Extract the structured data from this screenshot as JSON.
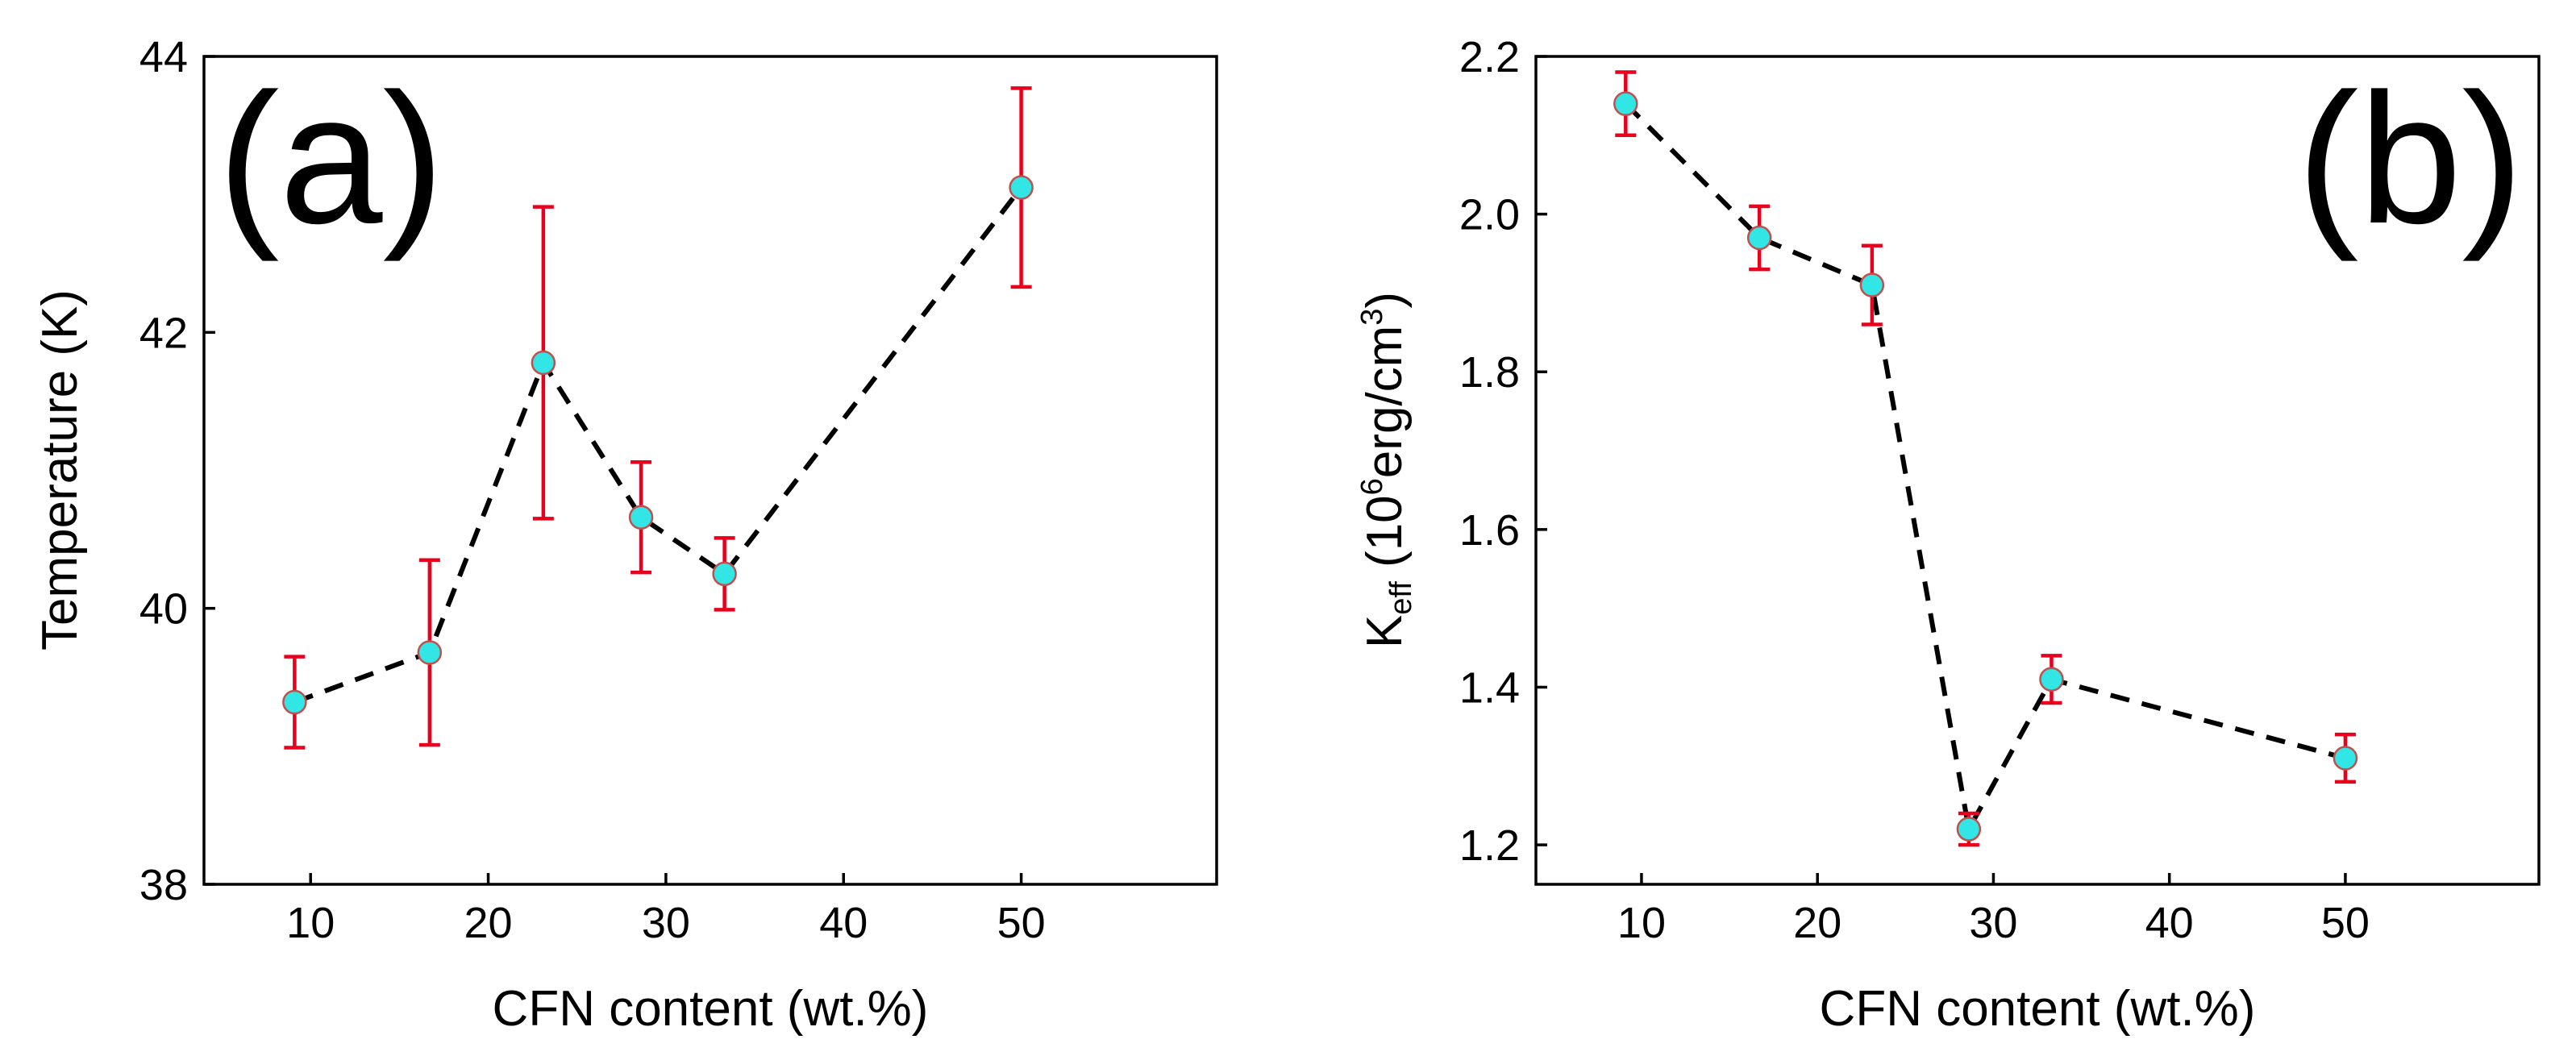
{
  "chart_data": [
    {
      "panel": "a",
      "type": "scatter",
      "style": "markers with error bars connected by dashed line",
      "xlabel": "CFN content (wt.%)",
      "ylabel": "Temperature (K)",
      "xlim": [
        4,
        61
      ],
      "ylim": [
        38,
        44
      ],
      "xticks": [
        10,
        20,
        30,
        40,
        50
      ],
      "yticks": [
        38,
        40,
        42,
        44
      ],
      "x": [
        9.1,
        16.7,
        23.1,
        28.6,
        33.3,
        50.0
      ],
      "y": [
        39.32,
        39.68,
        41.78,
        40.66,
        40.25,
        43.05
      ],
      "yerr": [
        0.33,
        0.67,
        1.13,
        0.4,
        0.26,
        0.72
      ],
      "grid": false,
      "legend": "none"
    },
    {
      "panel": "b",
      "type": "scatter",
      "style": "markers with error bars connected by dashed line",
      "xlabel": "CFN content (wt.%)",
      "ylabel_main": "K",
      "ylabel_sub": "eff",
      "ylabel_open": " (10",
      "ylabel_exp": "6",
      "ylabel_mid": "erg/cm",
      "ylabel_exp2": "3",
      "ylabel_close": ")",
      "xlim": [
        4,
        61
      ],
      "ylim": [
        1.15,
        2.2
      ],
      "xticks": [
        10,
        20,
        30,
        40,
        50
      ],
      "yticks": [
        1.2,
        1.4,
        1.6,
        1.8,
        2.0,
        2.2
      ],
      "ytick_labels": [
        "1.2",
        "1.4",
        "1.6",
        "1.8",
        "2.0",
        "2.2"
      ],
      "x": [
        9.1,
        16.7,
        23.1,
        28.6,
        33.3,
        50.0
      ],
      "y": [
        2.14,
        1.97,
        1.91,
        1.22,
        1.41,
        1.31
      ],
      "yerr": [
        0.04,
        0.04,
        0.05,
        0.02,
        0.03,
        0.03
      ],
      "grid": false,
      "legend": "none"
    }
  ],
  "panel_labels": {
    "a": "(a)",
    "b": "(b)"
  },
  "colors": {
    "marker_fill": "#33E6E6",
    "marker_edge": "#C0504D",
    "errorbar": "#E8001C",
    "line": "#000000",
    "axes": "#000000"
  }
}
